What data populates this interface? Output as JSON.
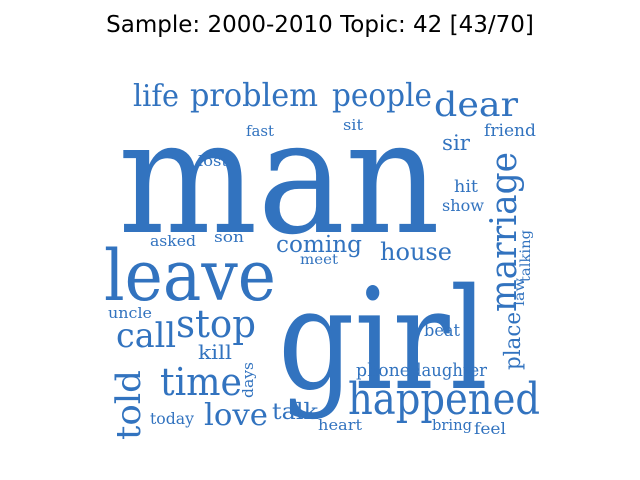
{
  "title": "Sample: 2000-2010 Topic: 42 [43/70]",
  "word_color": "#3273bf",
  "words": [
    "man",
    "girl",
    "leave",
    "happened",
    "marriage",
    "time",
    "stop",
    "call",
    "told",
    "love",
    "dear",
    "people",
    "problem",
    "life",
    "house",
    "coming",
    "kill",
    "talk",
    "place",
    "phone",
    "daughter",
    "friend",
    "sir",
    "hit",
    "show",
    "beat",
    "today",
    "feel",
    "bring",
    "heart",
    "meet",
    "asked",
    "son",
    "uncle",
    "days",
    "lost",
    "fast",
    "sit",
    "law",
    "talking"
  ]
}
